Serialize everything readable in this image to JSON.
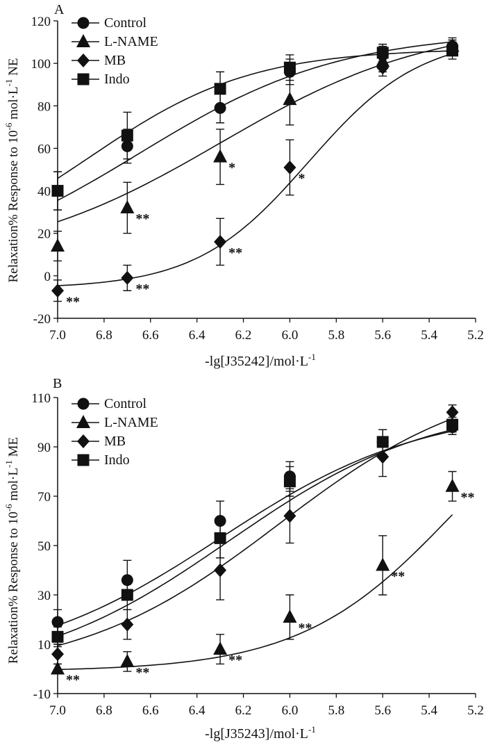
{
  "chart_data": [
    {
      "type": "line",
      "panel_label": "A",
      "xlabel": "-lg[J35242]/mol·L",
      "xlabel_sup": "-1",
      "ylabel_parts": [
        "Relaxation% Response to 10",
        "-6",
        " mol·L",
        "-1",
        " NE"
      ],
      "xlim": [
        7.0,
        5.2
      ],
      "ylim": [
        -20,
        120
      ],
      "x_ticks": [
        "7.0",
        "6.8",
        "6.6",
        "6.4",
        "6.2",
        "6.0",
        "5.8",
        "5.6",
        "5.4",
        "5.2"
      ],
      "y_ticks": [
        "-20",
        "0",
        "20",
        "40",
        "60",
        "80",
        "100",
        "120"
      ],
      "x": [
        7.0,
        6.7,
        6.3,
        6.0,
        5.6,
        5.3
      ],
      "series": [
        {
          "name": "Control",
          "marker": "circle",
          "values": [
            40,
            61,
            79,
            96,
            104,
            108
          ],
          "errors": [
            9,
            8,
            7,
            6,
            4,
            3
          ],
          "curve": {
            "bottom": 0,
            "top": 115,
            "ec50": 6.65,
            "hill": 1.0
          },
          "sig": [
            "",
            "",
            "",
            "",
            "",
            ""
          ]
        },
        {
          "name": "L-NAME",
          "marker": "triangle",
          "values": [
            14,
            32,
            56,
            83,
            101,
            108
          ],
          "errors": [
            7,
            12,
            13,
            12,
            5,
            4
          ],
          "curve": {
            "bottom": 5,
            "top": 120,
            "ec50": 6.3,
            "hill": 0.95
          },
          "sig": [
            "",
            "**",
            "*",
            "",
            "",
            ""
          ]
        },
        {
          "name": "MB",
          "marker": "diamond",
          "values": [
            -7,
            -1,
            16,
            51,
            98,
            108
          ],
          "errors": [
            5,
            6,
            11,
            13,
            4,
            3
          ],
          "curve": {
            "bottom": -6,
            "top": 113,
            "ec50": 5.92,
            "hill": 1.8
          },
          "sig": [
            "**",
            "**",
            "**",
            "*",
            "",
            ""
          ]
        },
        {
          "name": "Indo",
          "marker": "square",
          "values": [
            40,
            66,
            88,
            98,
            105,
            106
          ],
          "errors": [
            9,
            11,
            8,
            6,
            4,
            4
          ],
          "curve": {
            "bottom": 5,
            "top": 107,
            "ec50": 6.86,
            "hill": 1.25
          },
          "sig": [
            "",
            "",
            "",
            "",
            "",
            ""
          ]
        }
      ]
    },
    {
      "type": "line",
      "panel_label": "B",
      "xlabel": "-lg[J35243]/mol·L",
      "xlabel_sup": "-1",
      "ylabel_parts": [
        "Relaxation% Response to 10",
        "-6",
        " mol·L",
        "-1",
        " ME"
      ],
      "xlim": [
        7.0,
        5.2
      ],
      "ylim": [
        -10,
        110
      ],
      "x_ticks": [
        "7.0",
        "6.8",
        "6.6",
        "6.4",
        "6.2",
        "6.0",
        "5.8",
        "5.6",
        "5.4",
        "5.2"
      ],
      "y_ticks": [
        "-10",
        "10",
        "30",
        "50",
        "70",
        "90",
        "110"
      ],
      "x": [
        7.0,
        6.7,
        6.3,
        6.0,
        5.6,
        5.3
      ],
      "series": [
        {
          "name": "Control",
          "marker": "circle",
          "values": [
            19,
            36,
            60,
            78,
            92,
            98
          ],
          "errors": [
            5,
            8,
            8,
            6,
            5,
            3
          ],
          "curve": {
            "bottom": 0,
            "top": 106,
            "ec50": 6.3,
            "hill": 1.0
          },
          "sig": [
            "",
            "",
            "",
            "",
            "",
            ""
          ]
        },
        {
          "name": "L-NAME",
          "marker": "triangle",
          "values": [
            0,
            3,
            8,
            21,
            42,
            74
          ],
          "errors": [
            2,
            4,
            6,
            9,
            12,
            6
          ],
          "curve": {
            "bottom": -1,
            "top": 130,
            "ec50": 5.28,
            "hill": 1.3
          },
          "sig": [
            "**",
            "**",
            "**",
            "**",
            "**",
            "**"
          ]
        },
        {
          "name": "MB",
          "marker": "diamond",
          "values": [
            6,
            18,
            40,
            62,
            86,
            104
          ],
          "errors": [
            4,
            6,
            12,
            11,
            8,
            3
          ],
          "curve": {
            "bottom": -3,
            "top": 120,
            "ec50": 6.05,
            "hill": 1.0
          },
          "sig": [
            "",
            "",
            "",
            "",
            "",
            ""
          ]
        },
        {
          "name": "Indo",
          "marker": "square",
          "values": [
            13,
            30,
            53,
            76,
            92,
            99
          ],
          "errors": [
            4,
            6,
            8,
            6,
            5,
            3
          ],
          "curve": {
            "bottom": -4,
            "top": 108,
            "ec50": 6.26,
            "hill": 1.0
          },
          "sig": [
            "",
            "",
            "",
            "",
            "",
            ""
          ]
        }
      ]
    }
  ]
}
